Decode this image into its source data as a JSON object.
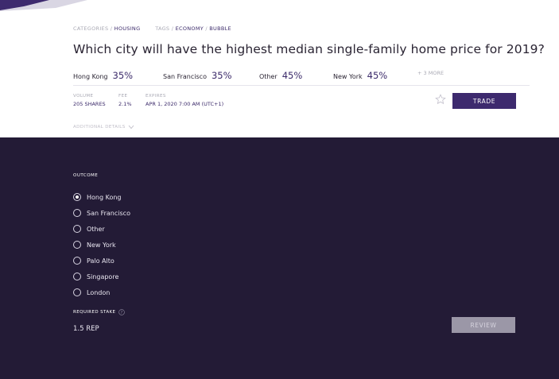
{
  "market": {
    "categories_label": "CATEGORIES",
    "category": "HOUSING",
    "tags_label": "TAGS",
    "tags": [
      "ECONOMY",
      "BUBBLE"
    ],
    "title": "Which city will have the highest median single-family home price for 2019?",
    "top_outcomes": [
      {
        "name": "Hong Kong",
        "percent": "35%"
      },
      {
        "name": "San Francisco",
        "percent": "35%"
      },
      {
        "name": "Other",
        "percent": "45%"
      },
      {
        "name": "New York",
        "percent": "45%"
      }
    ],
    "more_label": "+ 3 MORE",
    "volume": {
      "label": "VOLUME",
      "value": "205 SHARES"
    },
    "fee": {
      "label": "FEE",
      "value": "2.1%"
    },
    "expires": {
      "label": "EXPIRES",
      "value": "APR 1, 2020 7:00 AM (UTC+1)"
    },
    "trade_label": "TRADE",
    "additional_details_label": "ADDITIONAL DETAILS",
    "star_icon": "star-outline-icon"
  },
  "trade_form": {
    "outcome_label": "OUTCOME",
    "options": [
      "Hong Kong",
      "San Francisco",
      "Other",
      "New York",
      "Palo Alto",
      "Singapore",
      "London"
    ],
    "selected": "Hong Kong",
    "required_stake_label": "REQUIRED STAKE",
    "stake_value": "1.5 REP",
    "review_label": "REVIEW"
  },
  "colors": {
    "accent": "#3d2a6e",
    "dark_background": "#231b36",
    "link": "#3b2a6a",
    "muted": "#a9a9b4",
    "review_disabled": "#9b97a7"
  }
}
